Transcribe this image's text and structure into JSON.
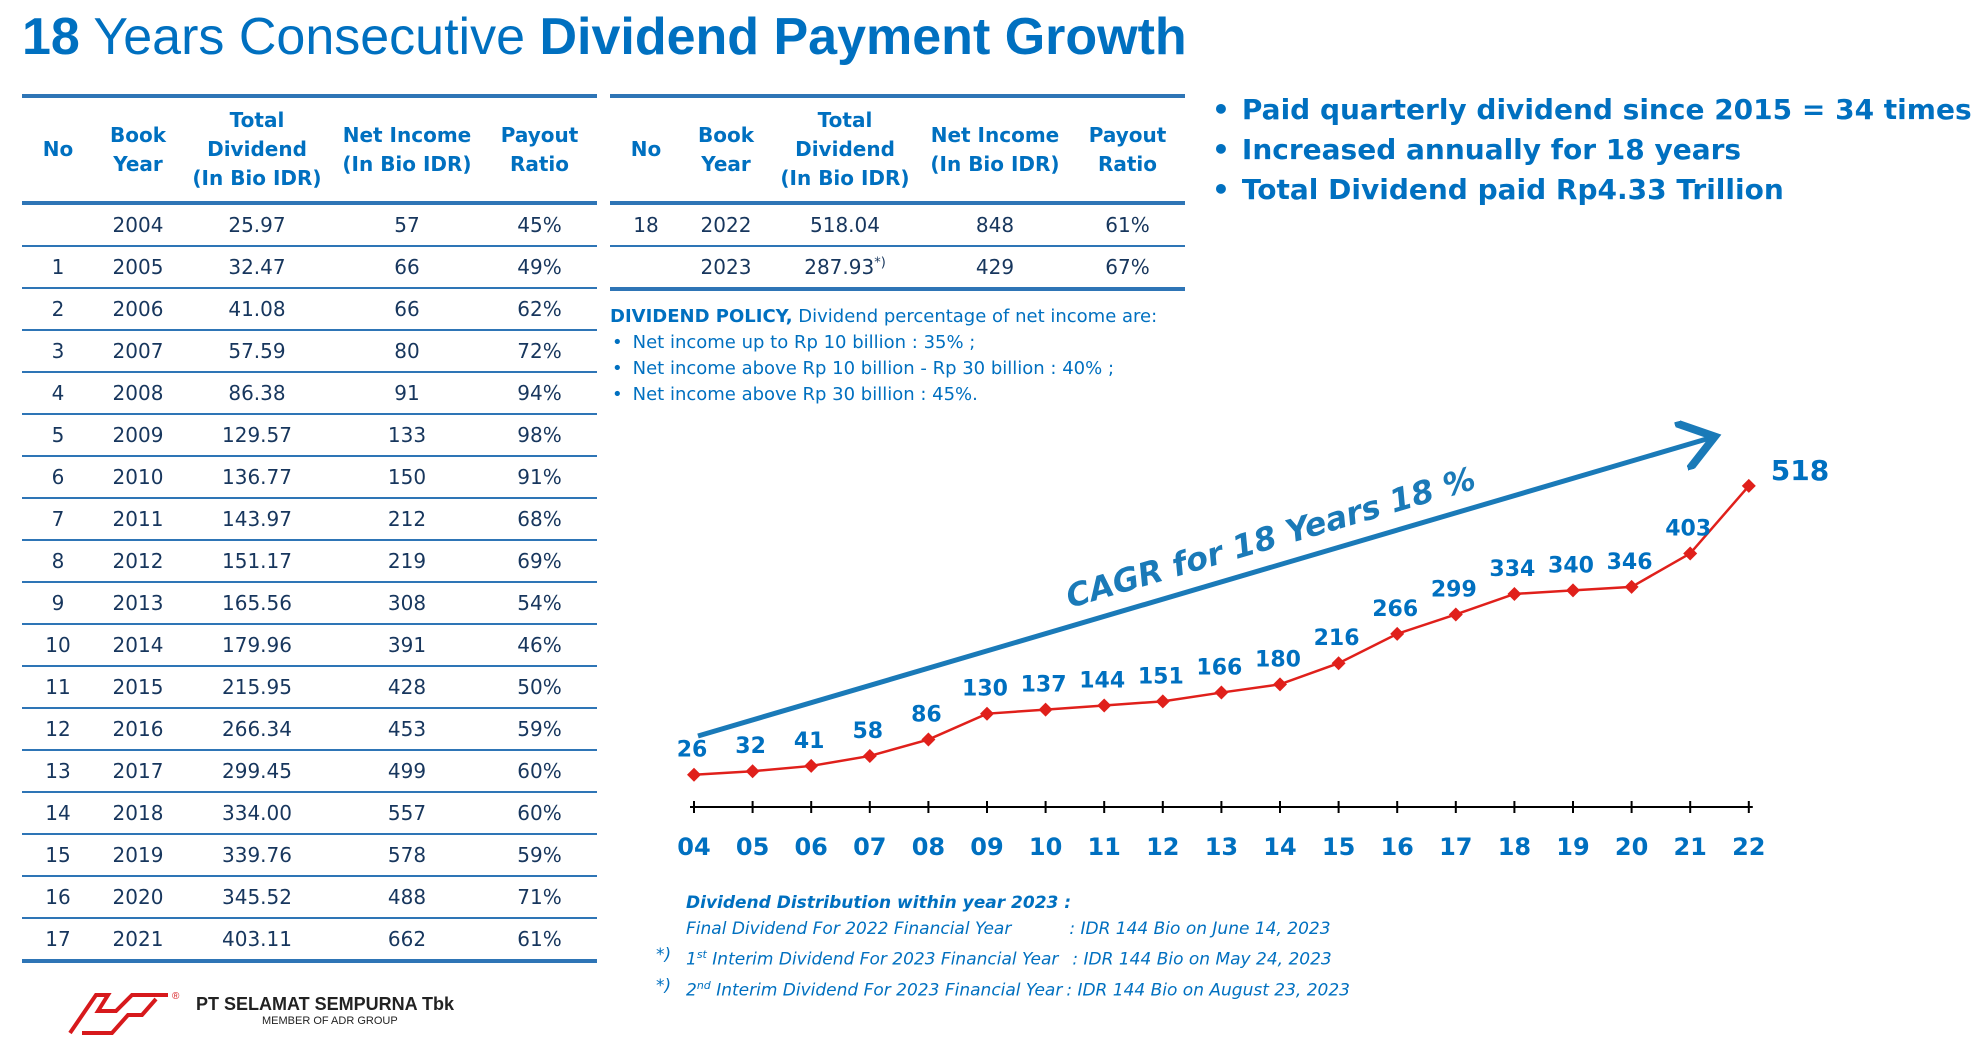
{
  "title": {
    "part1": "18",
    "part2": " Years Consecutive ",
    "part3": "Dividend Payment Growth"
  },
  "table_headers": {
    "no": "No",
    "book_year": "Book Year",
    "total_dividend": "Total Dividend",
    "total_dividend_unit": "(In Bio IDR)",
    "net_income": "Net Income",
    "net_income_unit": "(In Bio IDR)",
    "payout_ratio": "Payout Ratio"
  },
  "left_rows": [
    {
      "no": "",
      "year": "2004",
      "dividend": "25.97",
      "net_income": "57",
      "payout": "45%"
    },
    {
      "no": "1",
      "year": "2005",
      "dividend": "32.47",
      "net_income": "66",
      "payout": "49%"
    },
    {
      "no": "2",
      "year": "2006",
      "dividend": "41.08",
      "net_income": "66",
      "payout": "62%"
    },
    {
      "no": "3",
      "year": "2007",
      "dividend": "57.59",
      "net_income": "80",
      "payout": "72%"
    },
    {
      "no": "4",
      "year": "2008",
      "dividend": "86.38",
      "net_income": "91",
      "payout": "94%"
    },
    {
      "no": "5",
      "year": "2009",
      "dividend": "129.57",
      "net_income": "133",
      "payout": "98%"
    },
    {
      "no": "6",
      "year": "2010",
      "dividend": "136.77",
      "net_income": "150",
      "payout": "91%"
    },
    {
      "no": "7",
      "year": "2011",
      "dividend": "143.97",
      "net_income": "212",
      "payout": "68%"
    },
    {
      "no": "8",
      "year": "2012",
      "dividend": "151.17",
      "net_income": "219",
      "payout": "69%"
    },
    {
      "no": "9",
      "year": "2013",
      "dividend": "165.56",
      "net_income": "308",
      "payout": "54%"
    },
    {
      "no": "10",
      "year": "2014",
      "dividend": "179.96",
      "net_income": "391",
      "payout": "46%"
    },
    {
      "no": "11",
      "year": "2015",
      "dividend": "215.95",
      "net_income": "428",
      "payout": "50%"
    },
    {
      "no": "12",
      "year": "2016",
      "dividend": "266.34",
      "net_income": "453",
      "payout": "59%"
    },
    {
      "no": "13",
      "year": "2017",
      "dividend": "299.45",
      "net_income": "499",
      "payout": "60%"
    },
    {
      "no": "14",
      "year": "2018",
      "dividend": "334.00",
      "net_income": "557",
      "payout": "60%"
    },
    {
      "no": "15",
      "year": "2019",
      "dividend": "339.76",
      "net_income": "578",
      "payout": "59%"
    },
    {
      "no": "16",
      "year": "2020",
      "dividend": "345.52",
      "net_income": "488",
      "payout": "71%"
    },
    {
      "no": "17",
      "year": "2021",
      "dividend": "403.11",
      "net_income": "662",
      "payout": "61%"
    }
  ],
  "right_rows": [
    {
      "no": "18",
      "year": "2022",
      "dividend": "518.04",
      "dividend_note": "",
      "net_income": "848",
      "payout": "61%"
    },
    {
      "no": "",
      "year": "2023",
      "dividend": "287.93",
      "dividend_note": "*)",
      "net_income": "429",
      "payout": "67%"
    }
  ],
  "highlights": [
    "Paid quarterly dividend since 2015 = 34 times",
    "Increased annually for 18 years",
    "Total Dividend paid Rp4.33 Trillion"
  ],
  "policy": {
    "heading": "DIVIDEND POLICY,",
    "intro": " Dividend percentage of net income are:",
    "items": [
      "Net income up to Rp 10 billion : 35% ;",
      "Net income above Rp 10 billion - Rp 30 billion : 40% ;",
      "Net income above Rp 30 billion : 45%."
    ]
  },
  "chart_data": {
    "type": "line",
    "categories": [
      "04",
      "05",
      "06",
      "07",
      "08",
      "09",
      "10",
      "11",
      "12",
      "13",
      "14",
      "15",
      "16",
      "17",
      "18",
      "19",
      "20",
      "21",
      "22"
    ],
    "series": [
      {
        "values": [
          26,
          32,
          41,
          58,
          86,
          130,
          137,
          144,
          151,
          166,
          180,
          216,
          266,
          299,
          334,
          340,
          346,
          403,
          518
        ]
      }
    ],
    "annotation": "CAGR for 18 Years 18 %",
    "line_color": "#e0201b",
    "label_color": "#0070c0",
    "arrow_color": "#1a7ab8",
    "grid": false,
    "legend": "none"
  },
  "notes": {
    "heading": "Dividend Distribution within year 2023 :",
    "line1_label": "Final Dividend For 2022 Financial Year",
    "line1_value": ": IDR 144 Bio on June 14, 2023",
    "line2_marker": "*)",
    "line2_ord": "1",
    "line2_sup": "st",
    "line2_label": " Interim Dividend For 2023 Financial Year",
    "line2_value": ": IDR 144 Bio on May 24, 2023",
    "line3_marker": "*)",
    "line3_ord": "2",
    "line3_sup": "nd",
    "line3_label": " Interim Dividend For 2023 Financial Year",
    "line3_value": ": IDR 144 Bio on August 23, 2023"
  },
  "company": {
    "name": "PT SELAMAT SEMPURNA Tbk",
    "tagline": "MEMBER OF ADR GROUP",
    "registered": "®"
  }
}
